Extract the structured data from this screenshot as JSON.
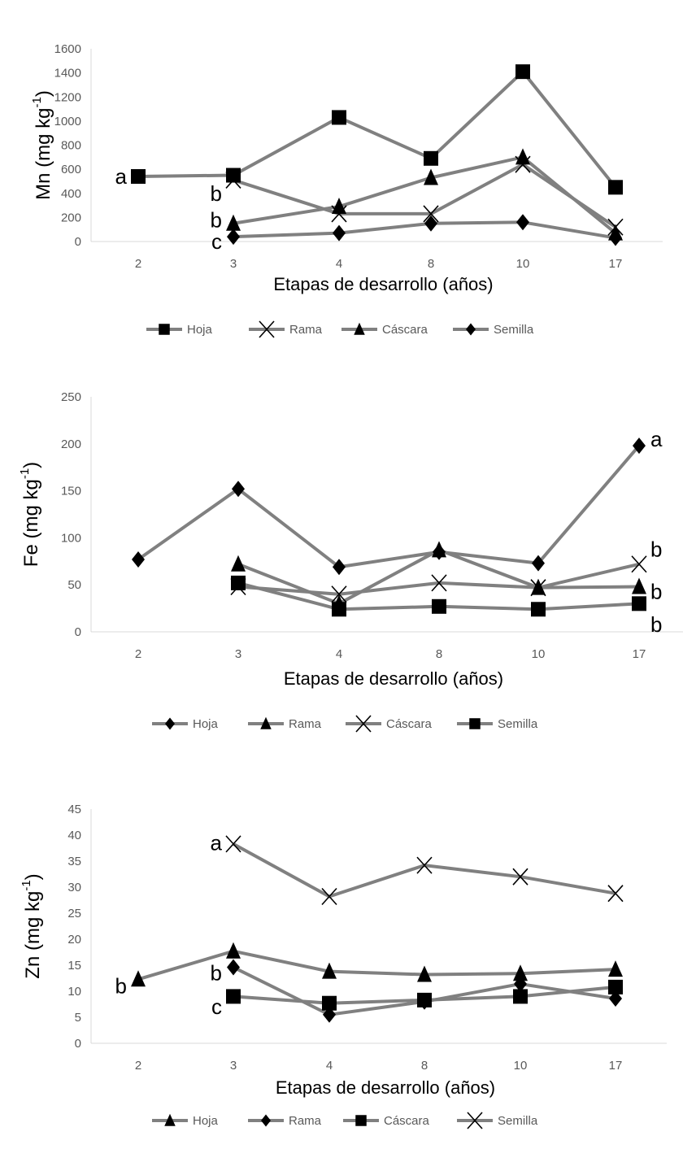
{
  "colors": {
    "line": "#808080",
    "marker": "#000000",
    "axis": "#d9d9d9",
    "tick_text": "#595959"
  },
  "chart_data": [
    {
      "type": "line",
      "ylabel": "Mn (mg kg",
      "ylabel_sup": "-1",
      "ylabel_close": ")",
      "xlabel": "Etapas de desarrollo (años)",
      "categories": [
        "2",
        "3",
        "4",
        "8",
        "10",
        "17"
      ],
      "ylim": [
        0,
        1600
      ],
      "yticks": [
        0,
        200,
        400,
        600,
        800,
        1000,
        1200,
        1400,
        1600
      ],
      "legend_position": "bottom",
      "grid": false,
      "series": [
        {
          "name": "Hoja",
          "marker": "square",
          "values": [
            540,
            550,
            1030,
            690,
            1410,
            450
          ]
        },
        {
          "name": "Rama",
          "marker": "x",
          "values": [
            null,
            510,
            230,
            230,
            640,
            120
          ]
        },
        {
          "name": "Cáscara",
          "marker": "triangle",
          "values": [
            null,
            150,
            290,
            530,
            700,
            70
          ]
        },
        {
          "name": "Semilla",
          "marker": "diamond",
          "values": [
            null,
            40,
            70,
            150,
            160,
            30
          ]
        }
      ],
      "annotations": [
        {
          "text": "a",
          "category": "2",
          "value": 540,
          "side": "left"
        },
        {
          "text": "b",
          "category": "3",
          "value": 400,
          "side": "left"
        },
        {
          "text": "b",
          "category": "3",
          "value": 180,
          "side": "left"
        },
        {
          "text": "c",
          "category": "3",
          "value": 0,
          "side": "left"
        }
      ]
    },
    {
      "type": "line",
      "ylabel": "Fe (mg kg",
      "ylabel_sup": "-1",
      "ylabel_close": ")",
      "xlabel": "Etapas de desarrollo (años)",
      "categories": [
        "2",
        "3",
        "4",
        "8",
        "10",
        "17"
      ],
      "ylim": [
        0,
        250
      ],
      "yticks": [
        0,
        50,
        100,
        150,
        200,
        250
      ],
      "legend_position": "bottom",
      "grid": false,
      "series": [
        {
          "name": "Hoja",
          "marker": "diamond",
          "values": [
            77,
            152,
            69,
            85,
            73,
            198
          ]
        },
        {
          "name": "Rama",
          "marker": "triangle",
          "values": [
            null,
            72,
            30,
            87,
            47,
            48
          ]
        },
        {
          "name": "Cáscara",
          "marker": "x",
          "values": [
            null,
            48,
            40,
            52,
            47,
            72
          ]
        },
        {
          "name": "Semilla",
          "marker": "square",
          "values": [
            null,
            52,
            24,
            27,
            24,
            30
          ]
        }
      ],
      "annotations": [
        {
          "text": "a",
          "category": "17",
          "value": 205,
          "side": "right"
        },
        {
          "text": "b",
          "category": "17",
          "value": 88,
          "side": "right"
        },
        {
          "text": "b",
          "category": "17",
          "value": 43,
          "side": "right"
        },
        {
          "text": "b",
          "category": "17",
          "value": 8,
          "side": "right"
        }
      ]
    },
    {
      "type": "line",
      "ylabel": "Zn (mg kg",
      "ylabel_sup": "-1",
      "ylabel_close": ")",
      "xlabel": "Etapas de desarrollo (años)",
      "categories": [
        "2",
        "3",
        "4",
        "8",
        "10",
        "17"
      ],
      "ylim": [
        0,
        45
      ],
      "yticks": [
        0,
        5,
        10,
        15,
        20,
        25,
        30,
        35,
        40,
        45
      ],
      "legend_position": "bottom",
      "grid": false,
      "series": [
        {
          "name": "Hoja",
          "marker": "triangle",
          "values": [
            12.3,
            17.7,
            13.8,
            13.2,
            13.4,
            14.2
          ]
        },
        {
          "name": "Rama",
          "marker": "diamond",
          "values": [
            null,
            14.6,
            5.5,
            8.0,
            11.4,
            8.6
          ]
        },
        {
          "name": "Cáscara",
          "marker": "square",
          "values": [
            null,
            9.0,
            7.7,
            8.3,
            9.0,
            10.8
          ]
        },
        {
          "name": "Semilla",
          "marker": "x",
          "values": [
            null,
            38.3,
            28.2,
            34.2,
            32.0,
            28.8
          ]
        }
      ],
      "annotations": [
        {
          "text": "a",
          "category": "3",
          "value": 38.5,
          "side": "left"
        },
        {
          "text": "b",
          "category": "2",
          "value": 11,
          "side": "left"
        },
        {
          "text": "b",
          "category": "3",
          "value": 13.5,
          "side": "left"
        },
        {
          "text": "c",
          "category": "3",
          "value": 7,
          "side": "left"
        }
      ]
    }
  ]
}
